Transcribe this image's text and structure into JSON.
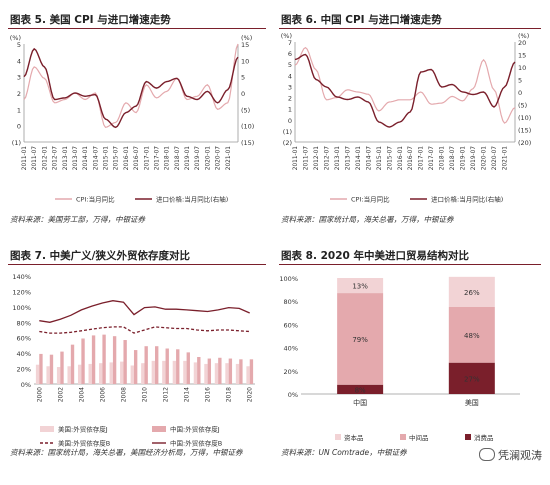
{
  "charts": {
    "c5": {
      "title": "图表 5. 美国 CPI 与进口增速走势",
      "source": "资料来源：美国劳工部，万得，中银证券",
      "left_ticks": [
        "(1)",
        "0",
        "1",
        "2",
        "3",
        "4",
        "5"
      ],
      "right_ticks": [
        "(15)",
        "(10)",
        "(5)",
        "0",
        "5",
        "10",
        "15"
      ],
      "right_unit": "(%)",
      "left_unit": "(%)",
      "xlabels": [
        "2011-01",
        "2011-07",
        "2012-01",
        "2012-07",
        "2013-01",
        "2013-07",
        "2014-01",
        "2014-07",
        "2015-01",
        "2015-07",
        "2016-01",
        "2016-07",
        "2017-01",
        "2017-07",
        "2018-01",
        "2018-07",
        "2019-01",
        "2019-07",
        "2020-01",
        "2020-07",
        "2021-01"
      ],
      "legend": [
        "CPI:当月同比",
        "进口价格:当月同比(右轴)"
      ]
    },
    "c6": {
      "title": "图表 6. 中国 CPI 与进口增速走势",
      "source": "资料来源：国家统计局，海关总署，万得，中银证券",
      "left_ticks": [
        "(2)",
        "(1)",
        "0",
        "1",
        "2",
        "3",
        "4",
        "5",
        "6",
        "7"
      ],
      "right_ticks": [
        "(20)",
        "(15)",
        "(10)",
        "(5)",
        "0",
        "5",
        "10",
        "15",
        "20"
      ],
      "right_unit": "(%)",
      "left_unit": "(%)",
      "xlabels": [
        "2011-01",
        "2011-07",
        "2012-01",
        "2012-07",
        "2013-01",
        "2013-07",
        "2014-01",
        "2014-07",
        "2015-01",
        "2015-07",
        "2016-01",
        "2016-07",
        "2017-01",
        "2017-07",
        "2018-01",
        "2018-07",
        "2019-01",
        "2019-07",
        "2020-01",
        "2020-07",
        "2021-01"
      ],
      "legend": [
        "CPI:当月同比",
        "进口价格:当月同比(右轴)"
      ]
    },
    "c7": {
      "title": "图表 7. 中美广义/狭义外贸依存度对比",
      "source": "资料来源：国家统计局，海关总署，美国经济分析局，万得，中银证券",
      "yticks": [
        "0%",
        "20%",
        "40%",
        "60%",
        "80%",
        "100%",
        "120%",
        "140%"
      ],
      "xlabels": [
        "2000",
        "2002",
        "2004",
        "2006",
        "2008",
        "2010",
        "2012",
        "2014",
        "2016",
        "2018",
        "2020"
      ],
      "legend": [
        "美国:外贸依存度J",
        "中国:外贸依存度J",
        "美国:外贸依存度B",
        "中国:外贸依存度B"
      ]
    },
    "c8": {
      "title": "图表 8. 2020 年中美进口贸易结构对比",
      "source": "资料来源：UN Comtrade，中银证券",
      "yticks": [
        "0%",
        "20%",
        "40%",
        "60%",
        "80%",
        "100%"
      ],
      "categories": [
        "中国",
        "美国"
      ],
      "legend": [
        "资本品",
        "中间品",
        "消费品"
      ],
      "labels": {
        "china": [
          "8%",
          "79%",
          "13%"
        ],
        "us": [
          "27%",
          "48%",
          "26%"
        ]
      }
    }
  },
  "watermark": "凭澜观涛",
  "colors": {
    "dark": "#7a1f2b",
    "light": "#e4a9ad",
    "pale": "#f2d3d5",
    "rule": "#7a1f2b"
  },
  "chart_data": [
    {
      "type": "line",
      "title": "图表 5. 美国 CPI 与进口增速走势",
      "x": [
        "2011-01",
        "2011-07",
        "2012-01",
        "2012-07",
        "2013-01",
        "2013-07",
        "2014-01",
        "2014-07",
        "2015-01",
        "2015-07",
        "2016-01",
        "2016-07",
        "2017-01",
        "2017-07",
        "2018-01",
        "2018-07",
        "2019-01",
        "2019-07",
        "2020-01",
        "2020-07",
        "2021-01",
        "2021-06"
      ],
      "series": [
        {
          "name": "CPI:当月同比",
          "axis": "left",
          "values": [
            1.6,
            3.6,
            2.9,
            1.4,
            1.6,
            2.0,
            1.6,
            2.0,
            -0.1,
            0.2,
            1.4,
            0.8,
            2.5,
            1.7,
            2.1,
            2.9,
            1.6,
            1.8,
            2.5,
            1.0,
            1.4,
            5.0
          ]
        },
        {
          "name": "进口价格:当月同比(右轴)",
          "axis": "right",
          "values": [
            5.0,
            13.5,
            8.0,
            -2.0,
            -1.5,
            0.0,
            -1.0,
            -0.5,
            -8.0,
            -10.5,
            -6.0,
            -4.0,
            3.5,
            1.5,
            3.5,
            4.5,
            -1.0,
            -2.0,
            0.5,
            -3.0,
            1.0,
            11.0
          ]
        }
      ],
      "ylim_left": [
        -1,
        5
      ],
      "ylim_right": [
        -15,
        15
      ]
    },
    {
      "type": "line",
      "title": "图表 6. 中国 CPI 与进口增速走势",
      "x": [
        "2011-01",
        "2011-07",
        "2012-01",
        "2012-07",
        "2013-01",
        "2013-07",
        "2014-01",
        "2014-07",
        "2015-01",
        "2015-07",
        "2016-01",
        "2016-07",
        "2017-01",
        "2017-07",
        "2018-01",
        "2018-07",
        "2019-01",
        "2019-07",
        "2020-01",
        "2020-07",
        "2021-01",
        "2021-06"
      ],
      "series": [
        {
          "name": "CPI:当月同比",
          "axis": "left",
          "values": [
            4.9,
            6.5,
            4.5,
            1.8,
            2.0,
            2.7,
            2.5,
            2.3,
            0.8,
            1.6,
            1.8,
            1.8,
            2.5,
            1.4,
            1.5,
            2.1,
            1.7,
            2.8,
            5.4,
            2.7,
            -0.3,
            1.1
          ]
        },
        {
          "name": "进口价格:当月同比(右轴)",
          "axis": "right",
          "values": [
            13,
            15,
            5,
            2,
            -2,
            -3,
            -2,
            -4,
            -12,
            -14,
            -12,
            -8,
            8,
            9,
            2,
            3,
            0,
            -1,
            0,
            -6,
            2,
            12
          ]
        }
      ],
      "ylim_left": [
        -2,
        7
      ],
      "ylim_right": [
        -20,
        20
      ]
    },
    {
      "type": "bar",
      "title": "图表 7. 中美广义/狭义外贸依存度对比",
      "categories": [
        "2000",
        "2001",
        "2002",
        "2003",
        "2004",
        "2005",
        "2006",
        "2007",
        "2008",
        "2009",
        "2010",
        "2011",
        "2012",
        "2013",
        "2014",
        "2015",
        "2016",
        "2017",
        "2018",
        "2019",
        "2020"
      ],
      "series": [
        {
          "name": "美国:外贸依存度J",
          "kind": "bar",
          "values": [
            25,
            23,
            22,
            23,
            25,
            26,
            27,
            28,
            29,
            24,
            27,
            30,
            30,
            30,
            30,
            28,
            26,
            27,
            27,
            26,
            23
          ]
        },
        {
          "name": "中国:外贸依存度J",
          "kind": "bar",
          "values": [
            39,
            38,
            42,
            51,
            59,
            63,
            64,
            62,
            57,
            44,
            49,
            49,
            46,
            45,
            41,
            35,
            33,
            34,
            33,
            32,
            32
          ]
        },
        {
          "name": "美国:外贸依存度B",
          "kind": "line",
          "values": [
            68,
            66,
            66,
            67,
            69,
            71,
            73,
            74,
            74,
            66,
            70,
            74,
            73,
            72,
            72,
            70,
            69,
            70,
            70,
            69,
            68
          ]
        },
        {
          "name": "中国:外贸依存度B",
          "kind": "line",
          "values": [
            82,
            80,
            84,
            89,
            96,
            101,
            105,
            108,
            106,
            90,
            99,
            100,
            97,
            97,
            96,
            95,
            94,
            96,
            99,
            98,
            92
          ]
        }
      ],
      "ylim": [
        0,
        140
      ]
    },
    {
      "type": "bar",
      "title": "图表 8. 2020 年中美进口贸易结构对比",
      "categories": [
        "中国",
        "美国"
      ],
      "stacked": true,
      "series": [
        {
          "name": "消费品",
          "values": [
            8,
            27
          ]
        },
        {
          "name": "中间品",
          "values": [
            79,
            48
          ]
        },
        {
          "name": "资本品",
          "values": [
            13,
            26
          ]
        }
      ],
      "ylim": [
        0,
        100
      ]
    }
  ]
}
